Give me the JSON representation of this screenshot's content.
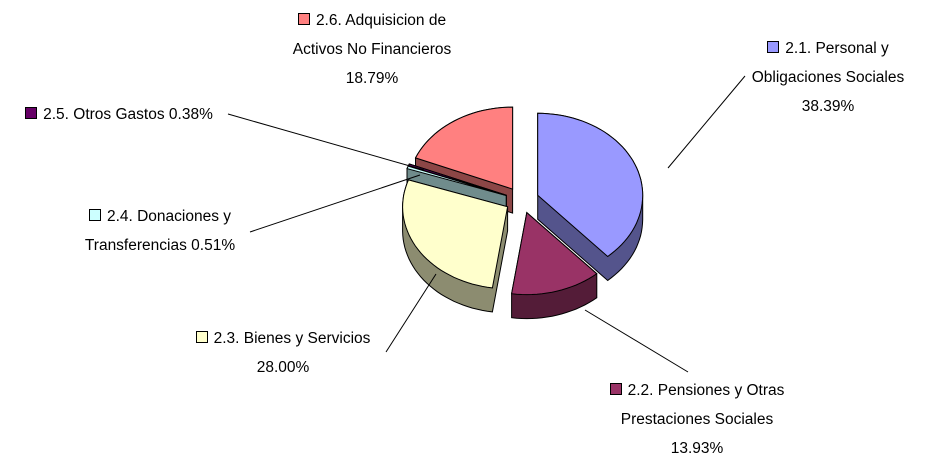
{
  "chart_data": {
    "type": "pie3d",
    "categories": [
      "2.1. Personal y\nObligaciones Sociales",
      "2.2. Pensiones y Otras\nPrestaciones Sociales",
      "2.3. Bienes y Servicios",
      "2.4. Donaciones y\nTransferencias",
      "2.5. Otros Gastos",
      "2.6. Adquisicion de\nActivos No Financieros"
    ],
    "values": [
      38.39,
      13.93,
      28.0,
      0.51,
      0.38,
      18.79
    ],
    "value_labels": [
      "38.39%",
      "13.93%",
      "28.00%",
      "0.51%",
      "0.38%",
      "18.79%"
    ],
    "colors": [
      "#9999ff",
      "#993366",
      "#ffffcc",
      "#ccffff",
      "#660066",
      "#ff8080"
    ]
  }
}
